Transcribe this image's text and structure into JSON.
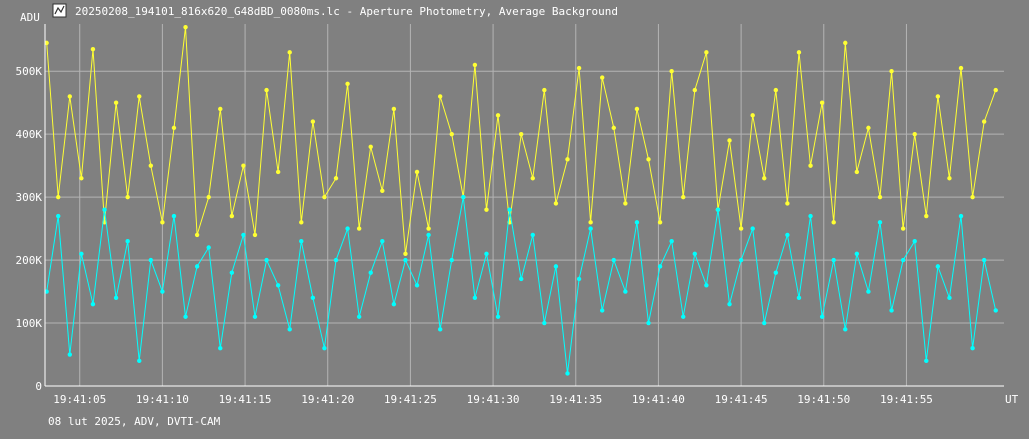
{
  "header": {
    "title": "20250208_194101_816x620_G48dBD_0080ms.lc - Aperture Photometry, Average Background",
    "icon": "lightcurve-app-icon"
  },
  "footer": {
    "info": "08 lut 2025, ADV, DVTI-CAM"
  },
  "colors": {
    "background": "#808080",
    "grid": "#b4b4b4",
    "axis": "#ffffff",
    "series_yellow": "#ffff33",
    "series_cyan": "#00ffff"
  },
  "chart_data": {
    "type": "scatter",
    "title": "20250208_194101_816x620_G48dBD_0080ms.lc - Aperture Photometry, Average Background",
    "ylabel": "ADU",
    "xlabel": "UT",
    "ylim": [
      0,
      575000
    ],
    "xlim": [
      "19:41:02.9",
      "19:42:00.9"
    ],
    "grid": true,
    "yticks": [
      {
        "value": 0,
        "label": "0"
      },
      {
        "value": 100000,
        "label": "100K"
      },
      {
        "value": 200000,
        "label": "200K"
      },
      {
        "value": 300000,
        "label": "300K"
      },
      {
        "value": 400000,
        "label": "400K"
      },
      {
        "value": 500000,
        "label": "500K"
      }
    ],
    "xticks": [
      "19:41:05",
      "19:41:10",
      "19:41:15",
      "19:41:20",
      "19:41:25",
      "19:41:30",
      "19:41:35",
      "19:41:40",
      "19:41:45",
      "19:41:50",
      "19:41:55"
    ],
    "series": [
      {
        "color": "#ffff33",
        "x": [
          "19:41:03.0",
          "19:41:03.7",
          "19:41:04.4",
          "19:41:05.1",
          "19:41:05.8",
          "19:41:06.5",
          "19:41:07.2",
          "19:41:07.9",
          "19:41:08.6",
          "19:41:09.3",
          "19:41:10.0",
          "19:41:10.7",
          "19:41:11.4",
          "19:41:12.1",
          "19:41:12.8",
          "19:41:13.5",
          "19:41:14.2",
          "19:41:14.9",
          "19:41:15.6",
          "19:41:16.3",
          "19:41:17.0",
          "19:41:17.7",
          "19:41:18.4",
          "19:41:19.1",
          "19:41:19.8",
          "19:41:20.5",
          "19:41:21.2",
          "19:41:21.9",
          "19:41:22.6",
          "19:41:23.3",
          "19:41:24.0",
          "19:41:24.7",
          "19:41:25.4",
          "19:41:26.1",
          "19:41:26.8",
          "19:41:27.5",
          "19:41:28.2",
          "19:41:28.9",
          "19:41:29.6",
          "19:41:30.3",
          "19:41:31.0",
          "19:41:31.7",
          "19:41:32.4",
          "19:41:33.1",
          "19:41:33.8",
          "19:41:34.5",
          "19:41:35.2",
          "19:41:35.9",
          "19:41:36.6",
          "19:41:37.3",
          "19:41:38.0",
          "19:41:38.7",
          "19:41:39.4",
          "19:41:40.1",
          "19:41:40.8",
          "19:41:41.5",
          "19:41:42.2",
          "19:41:42.9",
          "19:41:43.6",
          "19:41:44.3",
          "19:41:45.0",
          "19:41:45.7",
          "19:41:46.4",
          "19:41:47.1",
          "19:41:47.8",
          "19:41:48.5",
          "19:41:49.2",
          "19:41:49.9",
          "19:41:50.6",
          "19:41:51.3",
          "19:41:52.0",
          "19:41:52.7",
          "19:41:53.4",
          "19:41:54.1",
          "19:41:54.8",
          "19:41:55.5",
          "19:41:56.2",
          "19:41:56.9",
          "19:41:57.6",
          "19:41:58.3",
          "19:41:59.0",
          "19:41:59.7",
          "19:42:00.4"
        ],
        "values": [
          545000,
          300000,
          460000,
          330000,
          535000,
          260000,
          450000,
          300000,
          460000,
          350000,
          260000,
          410000,
          570000,
          240000,
          300000,
          440000,
          270000,
          350000,
          240000,
          470000,
          340000,
          530000,
          260000,
          420000,
          300000,
          330000,
          480000,
          250000,
          380000,
          310000,
          440000,
          210000,
          340000,
          250000,
          460000,
          400000,
          300000,
          510000,
          280000,
          430000,
          260000,
          400000,
          330000,
          470000,
          290000,
          360000,
          505000,
          260000,
          490000,
          410000,
          290000,
          440000,
          360000,
          260000,
          500000,
          300000,
          470000,
          530000,
          280000,
          390000,
          250000,
          430000,
          330000,
          470000,
          290000,
          530000,
          350000,
          450000,
          260000,
          545000,
          340000,
          410000,
          300000,
          500000,
          250000,
          400000,
          270000,
          460000,
          330000,
          505000,
          300000,
          420000,
          470000
        ]
      },
      {
        "color": "#00ffff",
        "x": [
          "19:41:03.0",
          "19:41:03.7",
          "19:41:04.4",
          "19:41:05.1",
          "19:41:05.8",
          "19:41:06.5",
          "19:41:07.2",
          "19:41:07.9",
          "19:41:08.6",
          "19:41:09.3",
          "19:41:10.0",
          "19:41:10.7",
          "19:41:11.4",
          "19:41:12.1",
          "19:41:12.8",
          "19:41:13.5",
          "19:41:14.2",
          "19:41:14.9",
          "19:41:15.6",
          "19:41:16.3",
          "19:41:17.0",
          "19:41:17.7",
          "19:41:18.4",
          "19:41:19.1",
          "19:41:19.8",
          "19:41:20.5",
          "19:41:21.2",
          "19:41:21.9",
          "19:41:22.6",
          "19:41:23.3",
          "19:41:24.0",
          "19:41:24.7",
          "19:41:25.4",
          "19:41:26.1",
          "19:41:26.8",
          "19:41:27.5",
          "19:41:28.2",
          "19:41:28.9",
          "19:41:29.6",
          "19:41:30.3",
          "19:41:31.0",
          "19:41:31.7",
          "19:41:32.4",
          "19:41:33.1",
          "19:41:33.8",
          "19:41:34.5",
          "19:41:35.2",
          "19:41:35.9",
          "19:41:36.6",
          "19:41:37.3",
          "19:41:38.0",
          "19:41:38.7",
          "19:41:39.4",
          "19:41:40.1",
          "19:41:40.8",
          "19:41:41.5",
          "19:41:42.2",
          "19:41:42.9",
          "19:41:43.6",
          "19:41:44.3",
          "19:41:45.0",
          "19:41:45.7",
          "19:41:46.4",
          "19:41:47.1",
          "19:41:47.8",
          "19:41:48.5",
          "19:41:49.2",
          "19:41:49.9",
          "19:41:50.6",
          "19:41:51.3",
          "19:41:52.0",
          "19:41:52.7",
          "19:41:53.4",
          "19:41:54.1",
          "19:41:54.8",
          "19:41:55.5",
          "19:41:56.2",
          "19:41:56.9",
          "19:41:57.6",
          "19:41:58.3",
          "19:41:59.0",
          "19:41:59.7",
          "19:42:00.4"
        ],
        "values": [
          150000,
          270000,
          50000,
          210000,
          130000,
          280000,
          140000,
          230000,
          40000,
          200000,
          150000,
          270000,
          110000,
          190000,
          220000,
          60000,
          180000,
          240000,
          110000,
          200000,
          160000,
          90000,
          230000,
          140000,
          60000,
          200000,
          250000,
          110000,
          180000,
          230000,
          130000,
          200000,
          160000,
          240000,
          90000,
          200000,
          300000,
          140000,
          210000,
          110000,
          280000,
          170000,
          240000,
          100000,
          190000,
          20000,
          170000,
          250000,
          120000,
          200000,
          150000,
          260000,
          100000,
          190000,
          230000,
          110000,
          210000,
          160000,
          280000,
          130000,
          200000,
          250000,
          100000,
          180000,
          240000,
          140000,
          270000,
          110000,
          200000,
          90000,
          210000,
          150000,
          260000,
          120000,
          200000,
          230000,
          40000,
          190000,
          140000,
          270000,
          60000,
          200000,
          120000
        ]
      }
    ]
  }
}
